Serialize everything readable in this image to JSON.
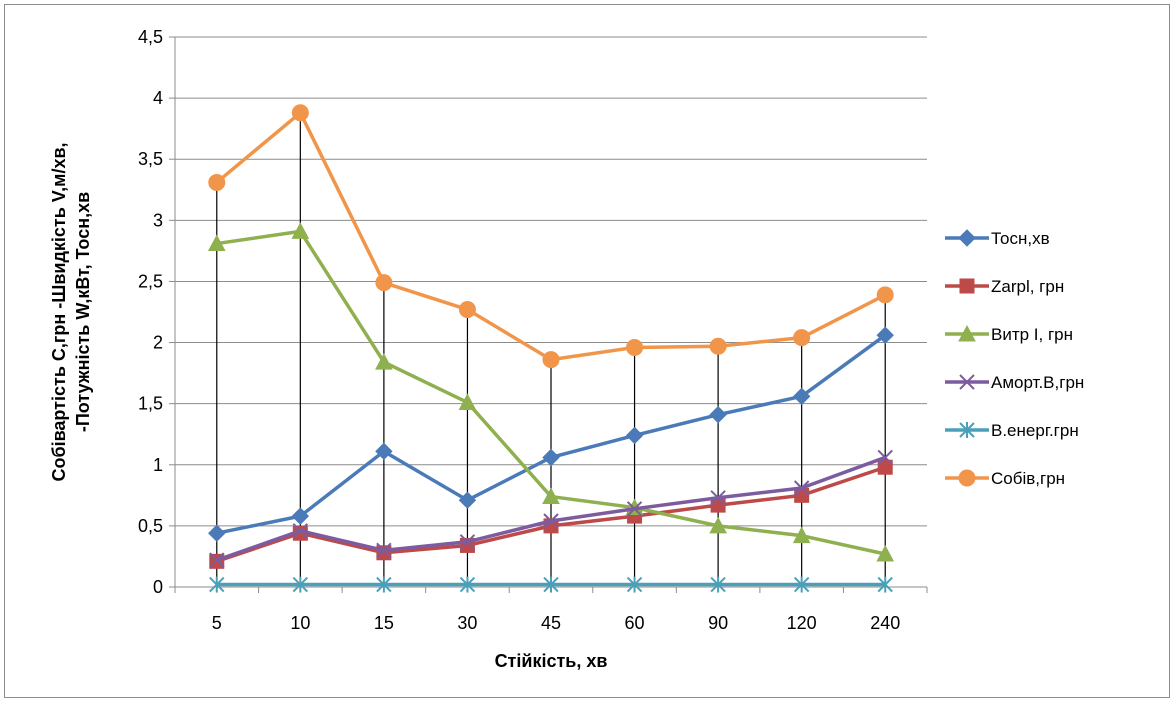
{
  "chart_data": {
    "type": "line",
    "title": "",
    "xlabel": "Стійкість, хв",
    "ylabel_line1": "Собівартість С,грн -Швидкість  V,м/хв,",
    "ylabel_line2": "-Потужність W,кВт, Тосн,хв",
    "categories": [
      "5",
      "10",
      "15",
      "30",
      "45",
      "60",
      "90",
      "120",
      "240"
    ],
    "ylim": [
      0,
      4.5
    ],
    "yticks": [
      0,
      0.5,
      1,
      1.5,
      2,
      2.5,
      3,
      3.5,
      4,
      4.5
    ],
    "ytick_labels": [
      "0",
      "0,5",
      "1",
      "1,5",
      "2",
      "2,5",
      "3",
      "3,5",
      "4",
      "4,5"
    ],
    "grid": true,
    "legend_position": "right",
    "drop_lines": true,
    "series": [
      {
        "name": "Тосн,хв",
        "color": "#4a7ab8",
        "marker": "diamond",
        "values": [
          0.44,
          0.58,
          1.11,
          0.71,
          1.06,
          1.24,
          1.41,
          1.56,
          2.06
        ]
      },
      {
        "name": "Zarpl, грн",
        "color": "#bd4a48",
        "marker": "square",
        "values": [
          0.21,
          0.44,
          0.28,
          0.34,
          0.5,
          0.58,
          0.67,
          0.75,
          0.98
        ]
      },
      {
        "name": "Витр I, грн",
        "color": "#8fb04e",
        "marker": "triangle",
        "values": [
          2.81,
          2.91,
          1.84,
          1.51,
          0.74,
          0.65,
          0.5,
          0.42,
          0.27
        ]
      },
      {
        "name": "Аморт.В,грн",
        "color": "#7c5c9e",
        "marker": "x",
        "values": [
          0.22,
          0.46,
          0.3,
          0.37,
          0.54,
          0.64,
          0.73,
          0.81,
          1.06
        ]
      },
      {
        "name": "В.енерг.грн",
        "color": "#4aa0b9",
        "marker": "asterisk",
        "values": [
          0.02,
          0.02,
          0.02,
          0.02,
          0.02,
          0.02,
          0.02,
          0.02,
          0.02
        ]
      },
      {
        "name": "Собів,грн",
        "color": "#f0954a",
        "marker": "circle",
        "values": [
          3.31,
          3.88,
          2.49,
          2.27,
          1.86,
          1.96,
          1.97,
          2.04,
          2.39
        ]
      }
    ]
  }
}
